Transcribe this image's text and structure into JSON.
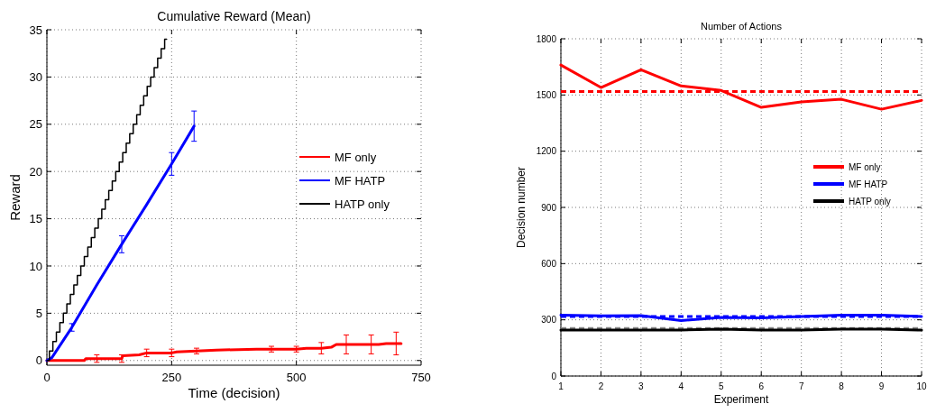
{
  "chart_data": [
    {
      "type": "line",
      "title": "Cumulative Reward (Mean)",
      "xlabel": "Time (decision)",
      "ylabel": "Reward",
      "xlim": [
        0,
        750
      ],
      "xticks": [
        0,
        250,
        500,
        750
      ],
      "ylim": [
        -0.5,
        35
      ],
      "yticks": [
        0,
        5,
        10,
        15,
        20,
        25,
        30,
        35
      ],
      "grid": true,
      "legend": "right",
      "line_style": "solid",
      "series": [
        {
          "name": "MF only",
          "color": "#ff0000",
          "x": [
            0,
            75,
            78,
            100,
            148,
            150,
            152,
            185,
            200,
            250,
            260,
            300,
            340,
            420,
            450,
            500,
            520,
            550,
            570,
            580,
            600,
            650,
            665,
            680,
            700,
            710
          ],
          "values": [
            0,
            0,
            0.2,
            0.2,
            0.2,
            0.2,
            0.5,
            0.6,
            0.8,
            0.8,
            0.9,
            1.0,
            1.1,
            1.2,
            1.2,
            1.2,
            1.3,
            1.3,
            1.4,
            1.7,
            1.7,
            1.7,
            1.7,
            1.8,
            1.8,
            1.8
          ],
          "errors": [
            null,
            null,
            null,
            0.4,
            null,
            0.4,
            null,
            null,
            0.4,
            0.4,
            null,
            0.3,
            null,
            null,
            0.3,
            0.3,
            null,
            0.6,
            null,
            null,
            1.0,
            1.0,
            null,
            null,
            1.2,
            null
          ]
        },
        {
          "name": "MF HATP",
          "color": "#0000ff",
          "x": [
            0,
            10,
            50,
            100,
            150,
            200,
            250,
            295
          ],
          "values": [
            0,
            0.3,
            3.5,
            8,
            12.3,
            16.5,
            20.8,
            24.8
          ],
          "errors": [
            null,
            null,
            0.4,
            null,
            0.9,
            null,
            1.2,
            1.6
          ]
        },
        {
          "name": "HATP only",
          "color": "#000000",
          "type": "step",
          "x": [
            0,
            5,
            12,
            19,
            26,
            33,
            40,
            47,
            54,
            61,
            68,
            75,
            82,
            89,
            96,
            103,
            110,
            117,
            124,
            131,
            138,
            145,
            152,
            159,
            166,
            173,
            180,
            187,
            194,
            201,
            208,
            215,
            222,
            229,
            236,
            240
          ],
          "values": [
            0,
            1,
            2,
            3,
            4,
            5,
            6,
            7,
            8,
            9,
            10,
            11,
            12,
            13,
            14,
            15,
            16,
            17,
            18,
            19,
            20,
            21,
            22,
            23,
            24,
            25,
            26,
            27,
            28,
            29,
            30,
            31,
            32,
            33,
            34,
            34
          ]
        }
      ]
    },
    {
      "type": "line",
      "title": "Number of Actions",
      "xlabel": "Experiment",
      "ylabel": "Decision number",
      "xlim": [
        1,
        10
      ],
      "xticks": [
        1,
        2,
        3,
        4,
        5,
        6,
        7,
        8,
        9,
        10
      ],
      "ylim": [
        0,
        1800
      ],
      "yticks": [
        0,
        300,
        600,
        900,
        1200,
        1500,
        1800
      ],
      "grid": true,
      "legend": "right",
      "line_style": "solid",
      "x": [
        1,
        2,
        3,
        4,
        5,
        6,
        7,
        8,
        9,
        10
      ],
      "series": [
        {
          "name": "MF only",
          "color": "#ff0000",
          "values": [
            1660,
            1540,
            1635,
            1548,
            1524,
            1434,
            1463,
            1477,
            1424,
            1471
          ]
        },
        {
          "name": "MF HATP",
          "color": "#0000ff",
          "values": [
            325,
            321,
            323,
            296,
            313,
            310,
            318,
            325,
            325,
            318
          ]
        },
        {
          "name": "HATP only",
          "color": "#000000",
          "values": [
            245,
            245,
            245,
            246,
            250,
            246,
            246,
            250,
            250,
            245
          ]
        }
      ],
      "ref_lines": [
        {
          "axis": "y",
          "value": 1518,
          "color": "#ff0000",
          "line_style": "dashed"
        },
        {
          "axis": "y",
          "value": 318,
          "color": "#0000ff",
          "line_style": "dashed"
        },
        {
          "axis": "y",
          "value": 254,
          "color": "#888888",
          "line_style": "dashed"
        }
      ]
    }
  ]
}
